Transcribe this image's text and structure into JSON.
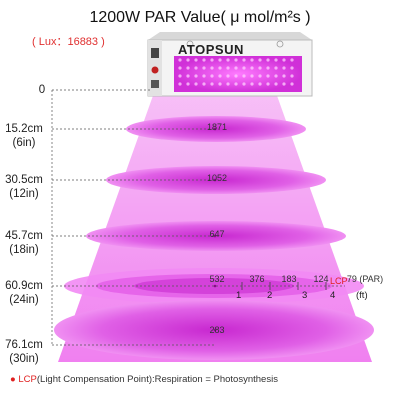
{
  "title": "1200W PAR Value( μ mol/m²s )",
  "lux": "( Lux：16883 )",
  "brand": "ATOPSUN",
  "distances": [
    {
      "label_cm": "0",
      "label_in": ""
    },
    {
      "label_cm": "15.2cm",
      "label_in": "(6in)"
    },
    {
      "label_cm": "30.5cm",
      "label_in": "(12in)"
    },
    {
      "label_cm": "45.7cm",
      "label_in": "(18in)"
    },
    {
      "label_cm": "60.9cm",
      "label_in": "(24in)"
    },
    {
      "label_cm": "76.1cm",
      "label_in": "(30in)"
    }
  ],
  "center_values": [
    "1871",
    "1052",
    "647",
    "532",
    "283"
  ],
  "footprint_values": [
    "376",
    "183",
    "124",
    "79 (PAR)"
  ],
  "footprint_feet": [
    "1",
    "2",
    "3",
    "4",
    "(ft)"
  ],
  "lcp_label": "LCP",
  "note_marker": "●",
  "note_text": "LCP(Light Compensation Point):Respiration = Photosynthesis",
  "colors": {
    "light": "#ee55ee",
    "light_dark": "#cc33cc",
    "lcp": "#e02020"
  }
}
